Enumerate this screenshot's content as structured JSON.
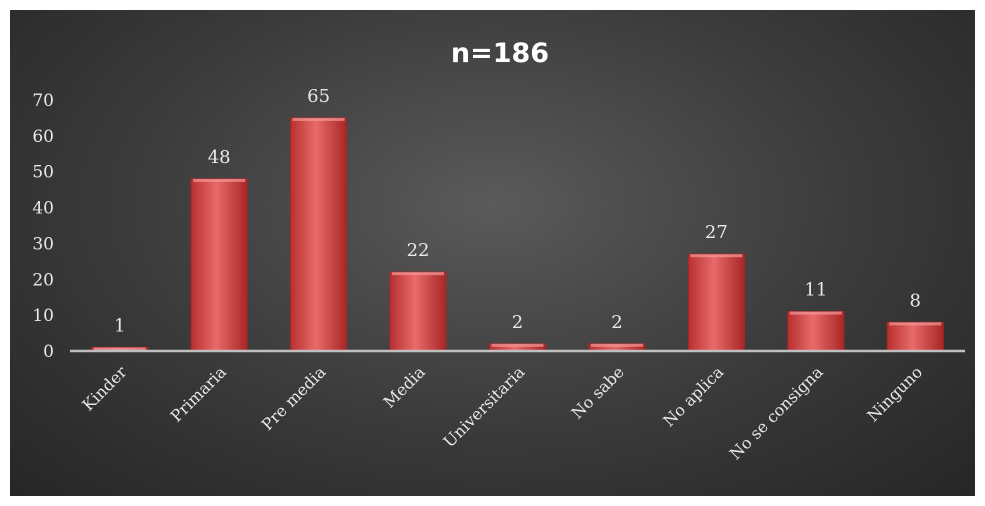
{
  "chart_data": {
    "type": "bar",
    "title": "n=186",
    "categories": [
      "Kinder",
      "Primaria",
      "Pre media",
      "Media",
      "Universitaria",
      "No sabe",
      "No aplica",
      "No se consigna",
      "Ninguno"
    ],
    "values": [
      1,
      48,
      65,
      22,
      2,
      2,
      27,
      11,
      8
    ],
    "ylim": [
      0,
      70
    ],
    "yticks": [
      0,
      10,
      20,
      30,
      40,
      50,
      60,
      70
    ],
    "grid": false,
    "legend": "none",
    "data_labels": true,
    "colors": {
      "bar": "#e05a5a",
      "bar_dark": "#a82626",
      "axis": "#bfbfbf",
      "text": "#e8e8e8"
    }
  }
}
